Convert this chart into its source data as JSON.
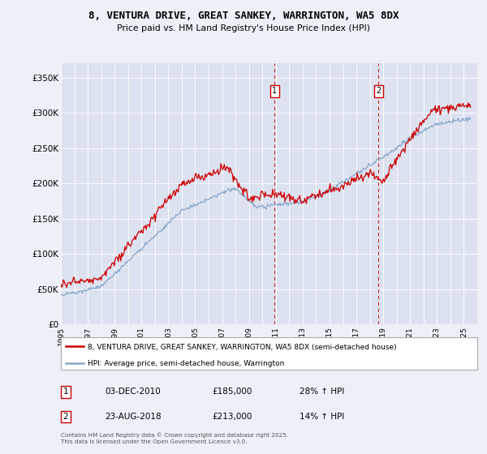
{
  "title": "8, VENTURA DRIVE, GREAT SANKEY, WARRINGTON, WA5 8DX",
  "subtitle": "Price paid vs. HM Land Registry's House Price Index (HPI)",
  "background_color": "#eef0f8",
  "plot_bg_color": "#dde2f0",
  "grid_color": "#ffffff",
  "red_line_color": "#cc0000",
  "blue_line_color": "#88aacc",
  "dashed_line_color": "#cc0000",
  "ylim": [
    0,
    370000
  ],
  "yticks": [
    0,
    50000,
    100000,
    150000,
    200000,
    250000,
    300000,
    350000
  ],
  "ytick_labels": [
    "£0",
    "£50K",
    "£100K",
    "£150K",
    "£200K",
    "£250K",
    "£300K",
    "£350K"
  ],
  "xstart_year": 1995,
  "xend_year": 2026,
  "sale1_year": 2010.92,
  "sale1_price": 185000,
  "sale1_label": "1",
  "sale1_date": "03-DEC-2010",
  "sale1_hpi": "28% ↑ HPI",
  "sale2_year": 2018.65,
  "sale2_price": 213000,
  "sale2_label": "2",
  "sale2_date": "23-AUG-2018",
  "sale2_hpi": "14% ↑ HPI",
  "legend_label1": "8, VENTURA DRIVE, GREAT SANKEY, WARRINGTON, WA5 8DX (semi-detached house)",
  "legend_label2": "HPI: Average price, semi-detached house, Warrington",
  "footer": "Contains HM Land Registry data © Crown copyright and database right 2025.\nThis data is licensed under the Open Government Licence v3.0."
}
